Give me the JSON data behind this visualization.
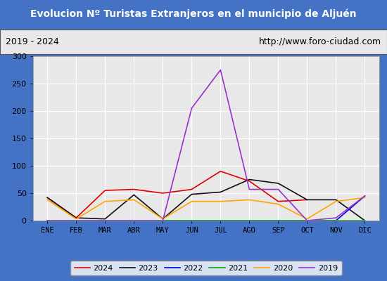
{
  "title": "Evolucion Nº Turistas Extranjeros en el municipio de Aljuén",
  "subtitle_left": "2019 - 2024",
  "subtitle_right": "http://www.foro-ciudad.com",
  "title_bg_color": "#4472c4",
  "title_text_color": "#ffffff",
  "subtitle_bg_color": "#e8e8e8",
  "plot_bg_color": "#e8e8e8",
  "outer_bg_color": "#4472c4",
  "months": [
    "ENE",
    "FEB",
    "MAR",
    "ABR",
    "MAY",
    "JUN",
    "JUL",
    "AGO",
    "SEP",
    "OCT",
    "NOV",
    "DIC"
  ],
  "ylim": [
    0,
    300
  ],
  "yticks": [
    0,
    50,
    100,
    150,
    200,
    250,
    300
  ],
  "series": {
    "2024": {
      "color": "#dd0000",
      "data": [
        42,
        5,
        55,
        57,
        50,
        57,
        90,
        72,
        35,
        38,
        null,
        null
      ]
    },
    "2023": {
      "color": "#111111",
      "data": [
        42,
        5,
        3,
        47,
        3,
        48,
        52,
        75,
        68,
        38,
        38,
        0
      ]
    },
    "2022": {
      "color": "#0000dd",
      "data": [
        0,
        0,
        0,
        0,
        0,
        0,
        0,
        0,
        0,
        0,
        0,
        45
      ]
    },
    "2021": {
      "color": "#00aa00",
      "data": [
        0,
        0,
        0,
        0,
        0,
        0,
        0,
        0,
        0,
        0,
        0,
        0
      ]
    },
    "2020": {
      "color": "#ffa500",
      "data": [
        38,
        3,
        35,
        38,
        3,
        35,
        35,
        38,
        30,
        3,
        35,
        42
      ]
    },
    "2019": {
      "color": "#9933cc",
      "data": [
        0,
        0,
        0,
        0,
        0,
        205,
        275,
        57,
        57,
        0,
        5,
        45
      ]
    }
  },
  "legend_order": [
    "2024",
    "2023",
    "2022",
    "2021",
    "2020",
    "2019"
  ],
  "legend_bg_color": "#ffffff",
  "legend_border_color": "#888888"
}
